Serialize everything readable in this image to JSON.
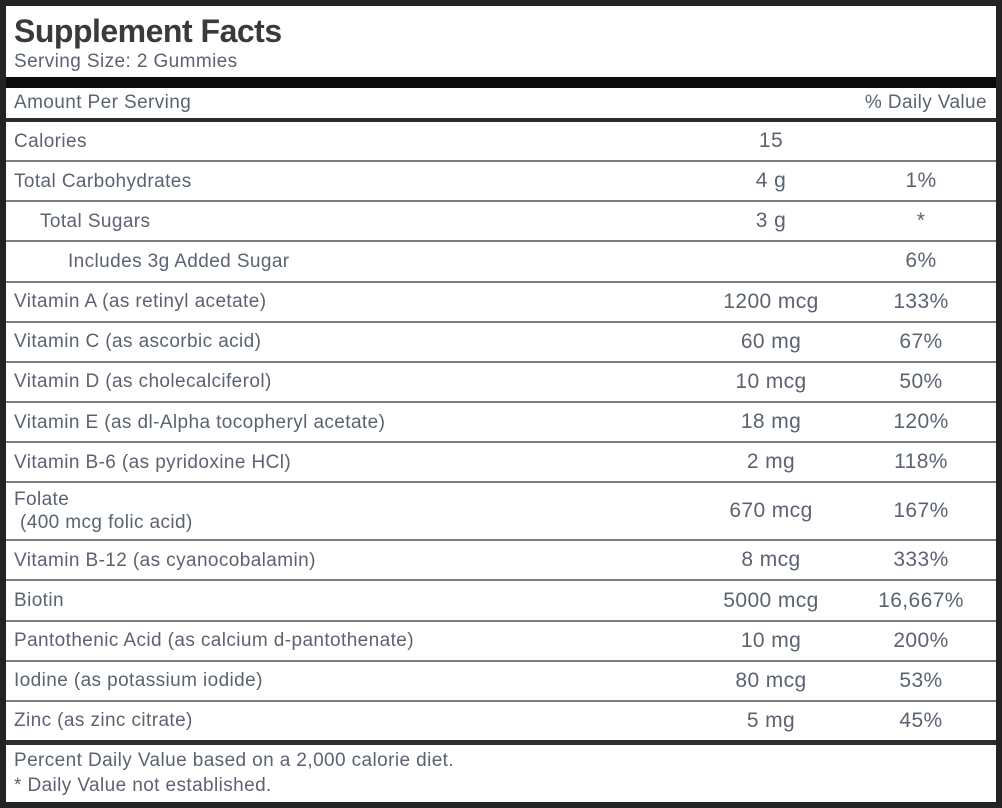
{
  "header": {
    "title": "Supplement Facts",
    "serving_size": "Serving Size: 2 Gummies"
  },
  "columns": {
    "amount_header": "Amount Per Serving",
    "dv_header": "% Daily Value"
  },
  "rows": [
    {
      "name": "Calories",
      "amount": "15",
      "dv": "",
      "indent": 0
    },
    {
      "name": "Total Carbohydrates",
      "amount": "4 g",
      "dv": "1%",
      "indent": 0
    },
    {
      "name": "Total Sugars",
      "amount": "3 g",
      "dv": "*",
      "indent": 1
    },
    {
      "name": "Includes 3g Added Sugar",
      "amount": "",
      "dv": "6%",
      "indent": 2
    },
    {
      "name": "Vitamin A (as retinyl acetate)",
      "amount": "1200 mcg",
      "dv": "133%",
      "indent": 0
    },
    {
      "name": "Vitamin C (as ascorbic acid)",
      "amount": "60 mg",
      "dv": "67%",
      "indent": 0
    },
    {
      "name": "Vitamin D (as cholecalciferol)",
      "amount": "10 mcg",
      "dv": "50%",
      "indent": 0
    },
    {
      "name": "Vitamin E (as dl-Alpha tocopheryl acetate)",
      "amount": "18 mg",
      "dv": "120%",
      "indent": 0
    },
    {
      "name": "Vitamin B-6 (as pyridoxine HCl)",
      "amount": "2 mg",
      "dv": "118%",
      "indent": 0
    },
    {
      "name": "Folate",
      "name_line2": "(400 mcg folic acid)",
      "amount": "670 mcg",
      "dv": "167%",
      "indent": 0
    },
    {
      "name": "Vitamin B-12 (as cyanocobalamin)",
      "amount": "8 mcg",
      "dv": "333%",
      "indent": 0
    },
    {
      "name": "Biotin",
      "amount": "5000 mcg",
      "dv": "16,667%",
      "indent": 0
    },
    {
      "name": "Pantothenic Acid (as calcium d-pantothenate)",
      "amount": "10 mg",
      "dv": "200%",
      "indent": 0
    },
    {
      "name": "Iodine (as potassium iodide)",
      "amount": "80 mcg",
      "dv": "53%",
      "indent": 0
    },
    {
      "name": "Zinc (as zinc citrate)",
      "amount": "5 mg",
      "dv": "45%",
      "indent": 0
    }
  ],
  "footer": {
    "line1": "Percent Daily Value based on a 2,000 calorie diet.",
    "line2": "* Daily Value not established."
  },
  "colors": {
    "text": "#5b6371",
    "title": "#3a3a3c",
    "outer_border": "#232323",
    "thick_bar": "#0c0c0c",
    "heavy_rule": "#2d2d2d",
    "thin_rule": "#7d7d7d",
    "background": "#ffffff"
  }
}
